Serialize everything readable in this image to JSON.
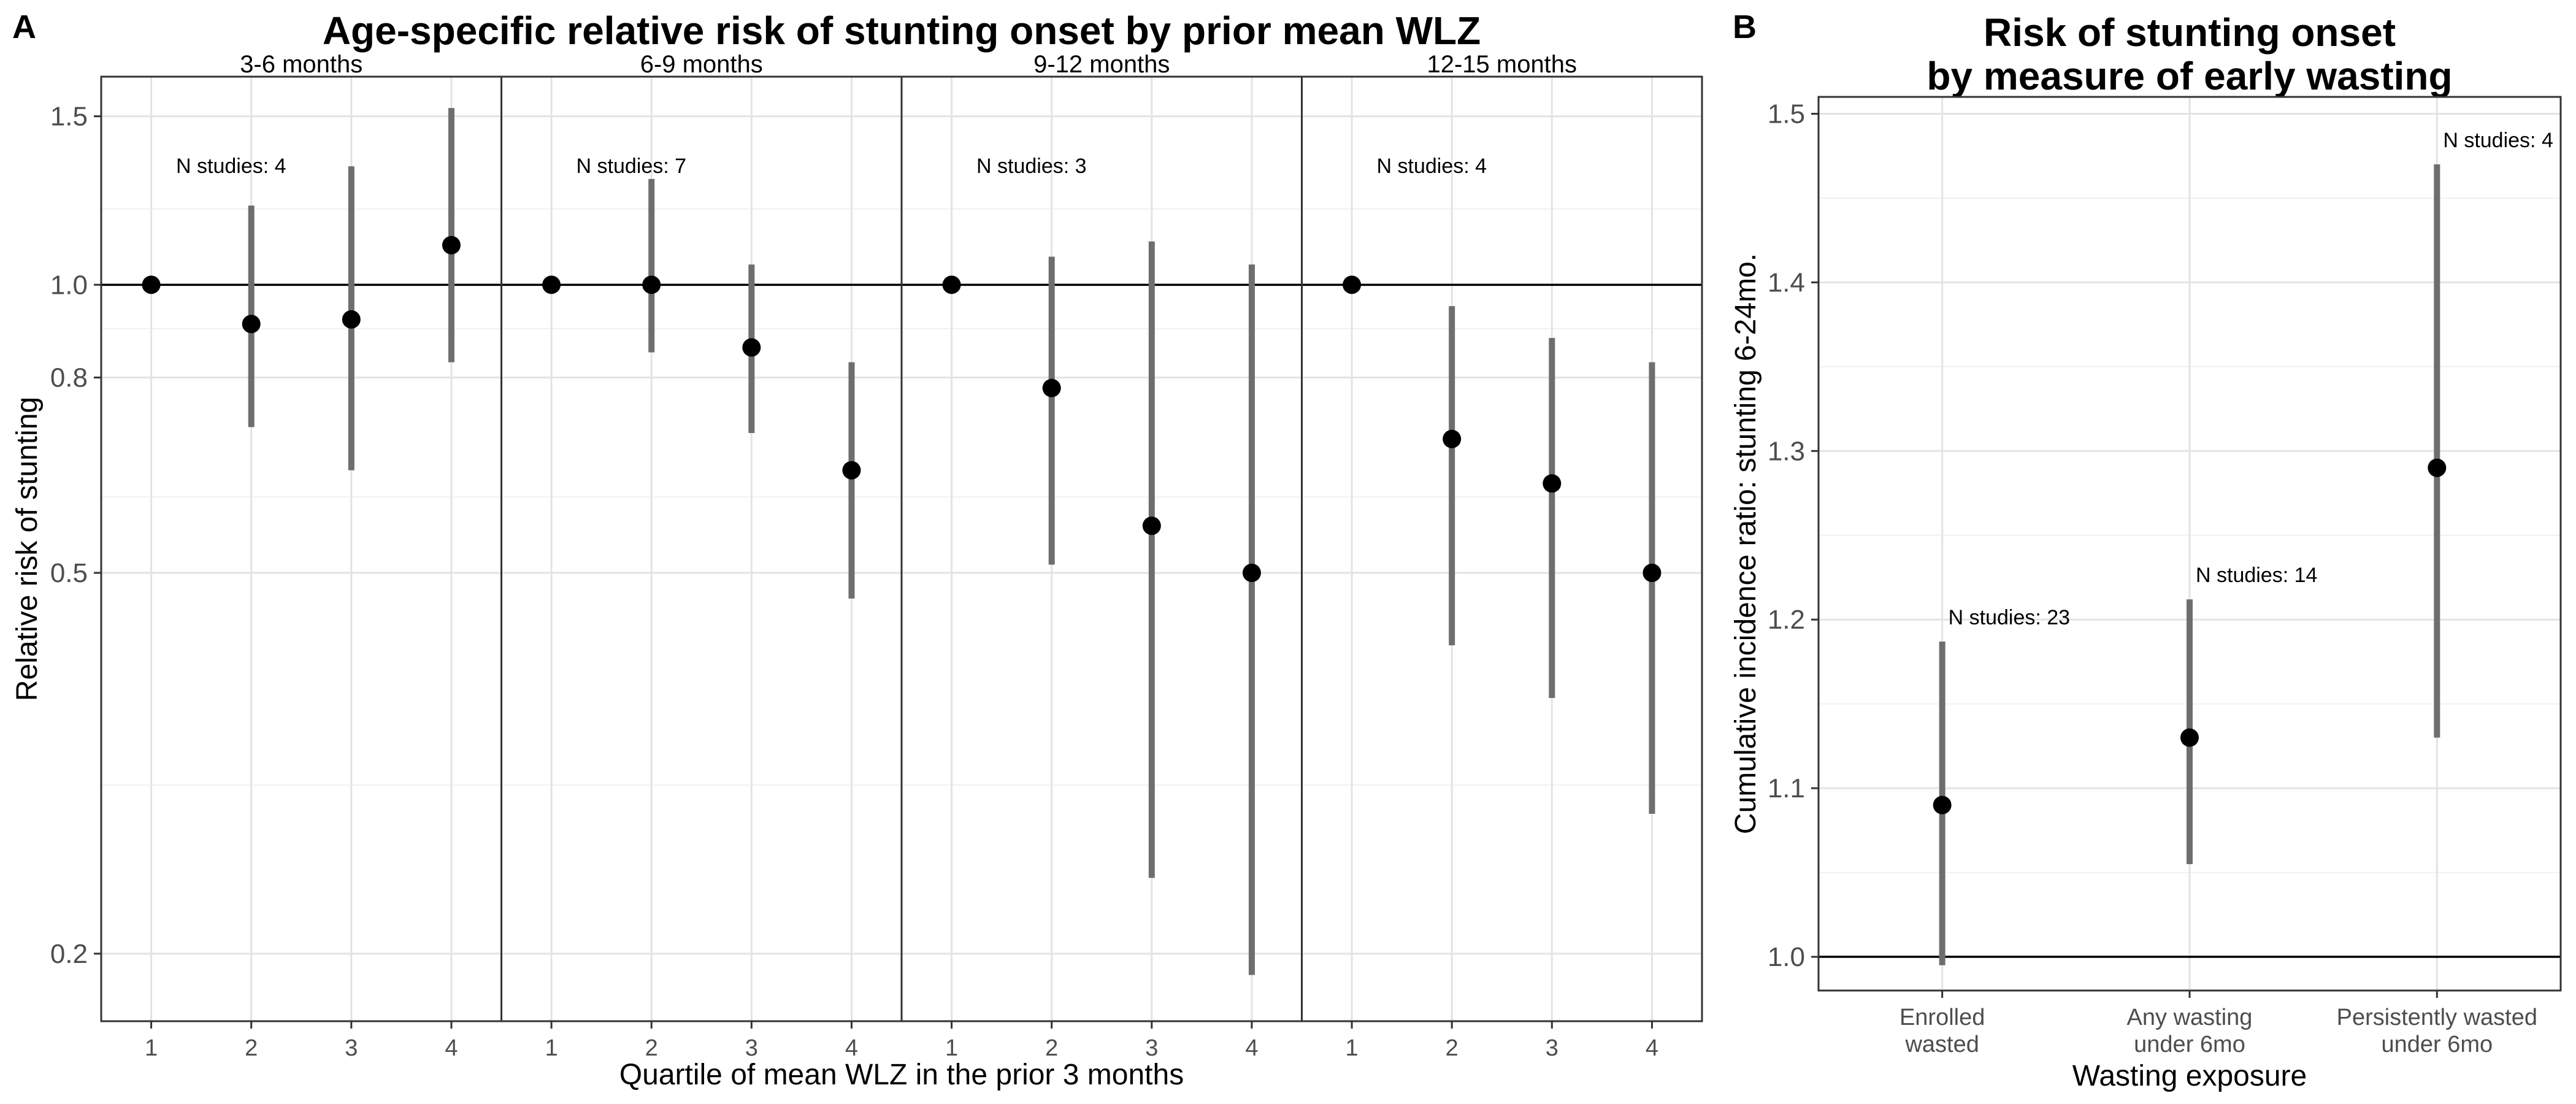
{
  "figure": {
    "panel_a_letter": "A",
    "panel_b_letter": "B"
  },
  "chart_data": [
    {
      "type": "scatter",
      "subtype": "point-range",
      "title": "Age-specific relative risk of stunting onset by prior mean WLZ",
      "xlabel": "Quartile of mean WLZ in the prior 3 months",
      "ylabel": "Relative risk of stunting",
      "y_scale": "log",
      "ylim": [
        0.17,
        1.65
      ],
      "y_ticks": [
        0.2,
        0.5,
        0.8,
        1.0,
        1.5
      ],
      "y_tick_labels": [
        "0.2",
        "0.5",
        "0.8",
        "1.0",
        "1.5"
      ],
      "minor_gridlines": [
        0.3,
        0.6,
        0.9,
        1.2
      ],
      "reference_line": 1.0,
      "grid": true,
      "x_categories": [
        "1",
        "2",
        "3",
        "4"
      ],
      "facets": [
        {
          "label": "3-6 months",
          "annotation": "N studies: 4",
          "points": [
            {
              "x": "1",
              "y": 1.0
            },
            {
              "x": "2",
              "y": 0.91,
              "lo": 0.71,
              "hi": 1.21
            },
            {
              "x": "3",
              "y": 0.92,
              "lo": 0.64,
              "hi": 1.33
            },
            {
              "x": "4",
              "y": 1.1,
              "lo": 0.83,
              "hi": 1.53
            }
          ]
        },
        {
          "label": "6-9 months",
          "annotation": "N studies: 7",
          "points": [
            {
              "x": "1",
              "y": 1.0
            },
            {
              "x": "2",
              "y": 1.0,
              "lo": 0.85,
              "hi": 1.29
            },
            {
              "x": "3",
              "y": 0.86,
              "lo": 0.7,
              "hi": 1.05
            },
            {
              "x": "4",
              "y": 0.64,
              "lo": 0.47,
              "hi": 0.83
            }
          ]
        },
        {
          "label": "9-12 months",
          "annotation": "N studies: 3",
          "points": [
            {
              "x": "1",
              "y": 1.0
            },
            {
              "x": "2",
              "y": 0.78,
              "lo": 0.51,
              "hi": 1.07
            },
            {
              "x": "3",
              "y": 0.56,
              "lo": 0.24,
              "hi": 1.11
            },
            {
              "x": "4",
              "y": 0.5,
              "lo": 0.19,
              "hi": 1.05
            }
          ]
        },
        {
          "label": "12-15 months",
          "annotation": "N studies: 4",
          "points": [
            {
              "x": "1",
              "y": 1.0
            },
            {
              "x": "2",
              "y": 0.69,
              "lo": 0.42,
              "hi": 0.95
            },
            {
              "x": "3",
              "y": 0.62,
              "lo": 0.37,
              "hi": 0.88
            },
            {
              "x": "4",
              "y": 0.5,
              "lo": 0.28,
              "hi": 0.83
            }
          ]
        }
      ]
    },
    {
      "type": "scatter",
      "subtype": "point-range",
      "title_lines": [
        "Risk of stunting onset",
        "by measure of early wasting"
      ],
      "xlabel": "Wasting exposure",
      "ylabel": "Cumulative incidence ratio: stunting 6-24mo.",
      "ylim": [
        0.98,
        1.51
      ],
      "y_ticks": [
        1.0,
        1.1,
        1.2,
        1.3,
        1.4,
        1.5
      ],
      "y_tick_labels": [
        "1.0",
        "1.1",
        "1.2",
        "1.3",
        "1.4",
        "1.5"
      ],
      "minor_gridlines": [
        1.05,
        1.15,
        1.25,
        1.35,
        1.45
      ],
      "reference_line": 1.0,
      "grid": true,
      "categories": [
        {
          "label_lines": [
            "Enrolled",
            "wasted"
          ],
          "annotation": "N studies: 23",
          "y": 1.09,
          "lo": 0.995,
          "hi": 1.187
        },
        {
          "label_lines": [
            "Any wasting",
            "under 6mo"
          ],
          "annotation": "N studies: 14",
          "y": 1.13,
          "lo": 1.055,
          "hi": 1.212
        },
        {
          "label_lines": [
            "Persistently wasted",
            "under 6mo"
          ],
          "annotation": "N studies: 4",
          "y": 1.29,
          "lo": 1.13,
          "hi": 1.47
        }
      ]
    }
  ]
}
